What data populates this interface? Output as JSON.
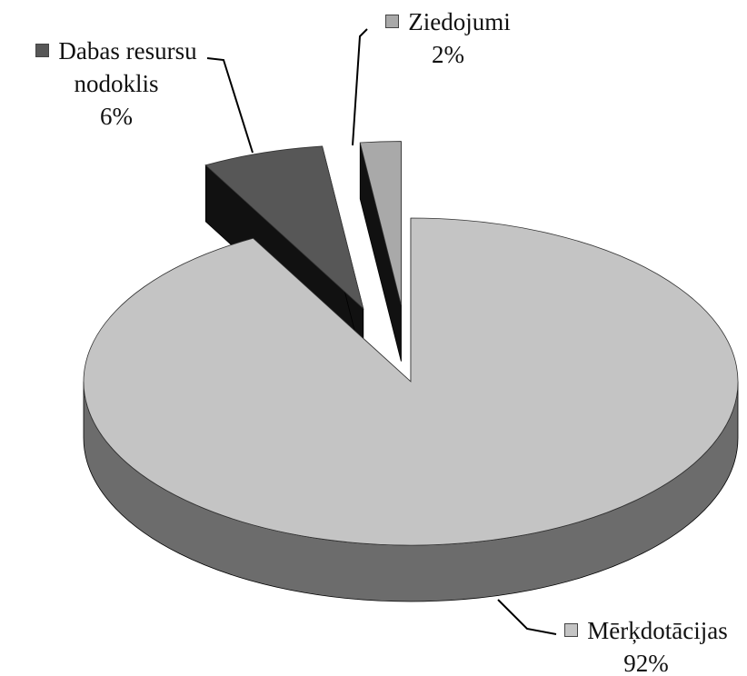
{
  "chart_data": {
    "type": "pie3d",
    "categories": [
      "Mērķdotācijas",
      "Dabas resursu nodoklis",
      "Ziedojumi"
    ],
    "values": [
      92,
      6,
      2
    ],
    "value_labels": [
      "92%",
      "6%",
      "2%"
    ],
    "colors": [
      "#c4c4c4",
      "#575757",
      "#a9a9a9"
    ]
  }
}
